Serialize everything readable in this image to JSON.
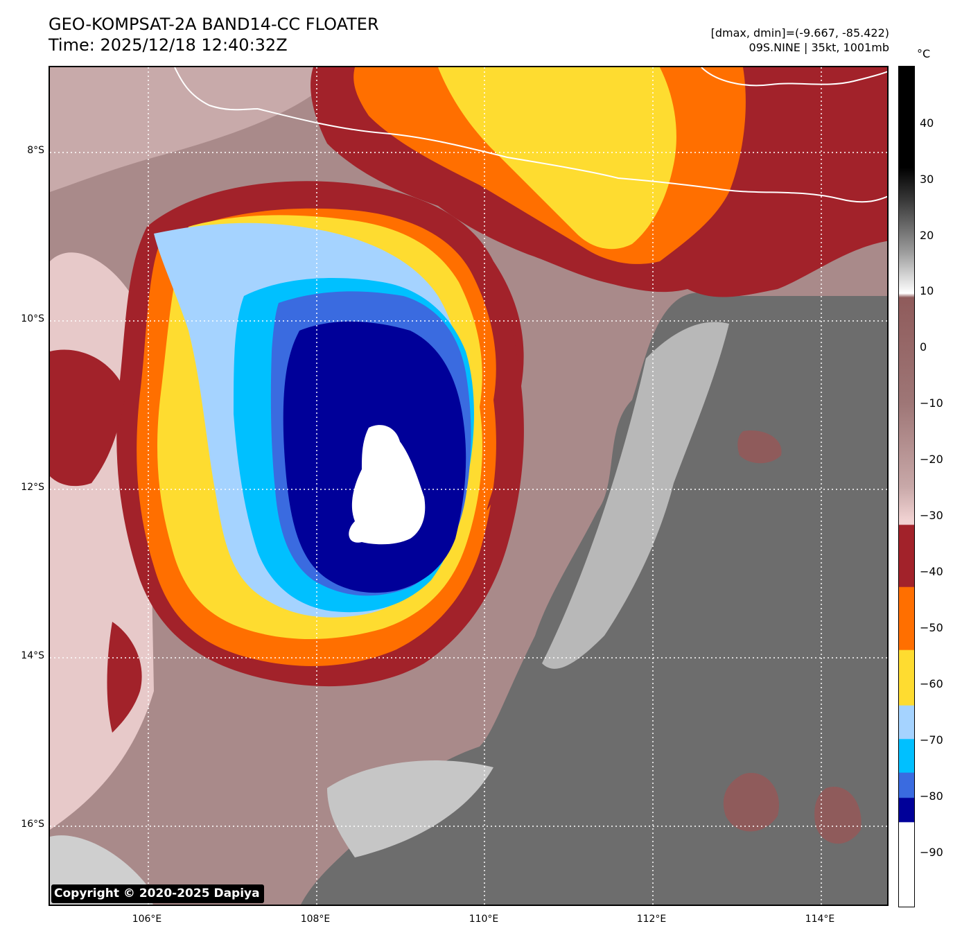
{
  "header": {
    "title": "GEO-KOMPSAT-2A BAND14-CC FLOATER",
    "time": "Time: 2025/12/18 12:40:32Z",
    "range": "[dmax, dmin]=(-9.667, -85.422)",
    "storm": "09S.NINE | 35kt, 1001mb"
  },
  "map": {
    "copyright": "Copyright © 2020-2025 Dapiya",
    "lat_labels": [
      "8°S",
      "10°S",
      "12°S",
      "14°S",
      "16°S"
    ],
    "lon_labels": [
      "106°E",
      "108°E",
      "110°E",
      "112°E",
      "114°E"
    ]
  },
  "colorbar": {
    "unit": "°C",
    "tick_labels": [
      "40",
      "30",
      "20",
      "10",
      "0",
      "−10",
      "−20",
      "−30",
      "−40",
      "−50",
      "−60",
      "−70",
      "−80",
      "−90"
    ],
    "colors": {
      "black": "#000000",
      "white": "#ffffff",
      "dark_red": "#a2222a",
      "orange": "#ff6f00",
      "yellow": "#fedc30",
      "light_blue": "#a5d3ff",
      "sky_blue": "#00c0ff",
      "royal_blue": "#3a6be0",
      "navy": "#000099",
      "rose": "#f1d2d2",
      "mauve": "#8f5b5b",
      "grey": "#707070"
    }
  }
}
